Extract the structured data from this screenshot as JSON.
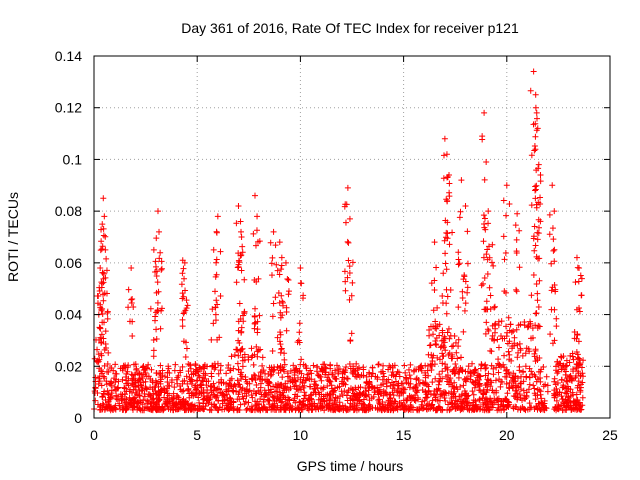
{
  "chart_data": {
    "type": "scatter",
    "title": "Day 361 of 2016, Rate Of TEC Index for receiver p121",
    "xlabel": "GPS time / hours",
    "ylabel": "ROTI / TECUs",
    "xlim": [
      0,
      25
    ],
    "ylim": [
      0,
      0.14
    ],
    "xticks": [
      0,
      5,
      10,
      15,
      20,
      25
    ],
    "xtick_labels": [
      "0",
      "5",
      "10",
      "15",
      "20",
      "25"
    ],
    "yticks": [
      0,
      0.02,
      0.04,
      0.06,
      0.08,
      0.1,
      0.12,
      0.14
    ],
    "ytick_labels": [
      "0",
      "0.02",
      "0.04",
      "0.06",
      "0.08",
      "0.1",
      "0.12",
      "0.14"
    ],
    "grid": true,
    "marker": "+",
    "color": "#ff0000",
    "series": [
      {
        "name": "ROTI",
        "note": "dense band of samples mostly between 0.003 and 0.03 TECU/min over 0-23.7 h; representative outlier points listed",
        "x": [
          0.3,
          0.4,
          0.45,
          0.5,
          0.55,
          1.8,
          2.9,
          3.1,
          3.15,
          4.3,
          4.4,
          5.8,
          6.0,
          7.0,
          7.1,
          7.15,
          7.8,
          7.9,
          8.7,
          9.0,
          9.1,
          9.3,
          10.0,
          12.3,
          12.4,
          16.5,
          17.0,
          17.1,
          17.2,
          17.8,
          18.0,
          18.9,
          19.0,
          19.1,
          19.3,
          20.0,
          20.5,
          21.3,
          21.4,
          21.45,
          21.5,
          21.55,
          22.2,
          22.3,
          23.4,
          23.5
        ],
        "y": [
          0.058,
          0.075,
          0.085,
          0.078,
          0.065,
          0.058,
          0.065,
          0.08,
          0.072,
          0.061,
          0.06,
          0.065,
          0.078,
          0.082,
          0.076,
          0.07,
          0.086,
          0.078,
          0.072,
          0.068,
          0.062,
          0.06,
          0.058,
          0.089,
          0.077,
          0.068,
          0.108,
          0.102,
          0.094,
          0.092,
          0.082,
          0.118,
          0.099,
          0.08,
          0.067,
          0.09,
          0.079,
          0.134,
          0.125,
          0.118,
          0.112,
          0.098,
          0.09,
          0.08,
          0.062,
          0.058
        ]
      }
    ]
  }
}
